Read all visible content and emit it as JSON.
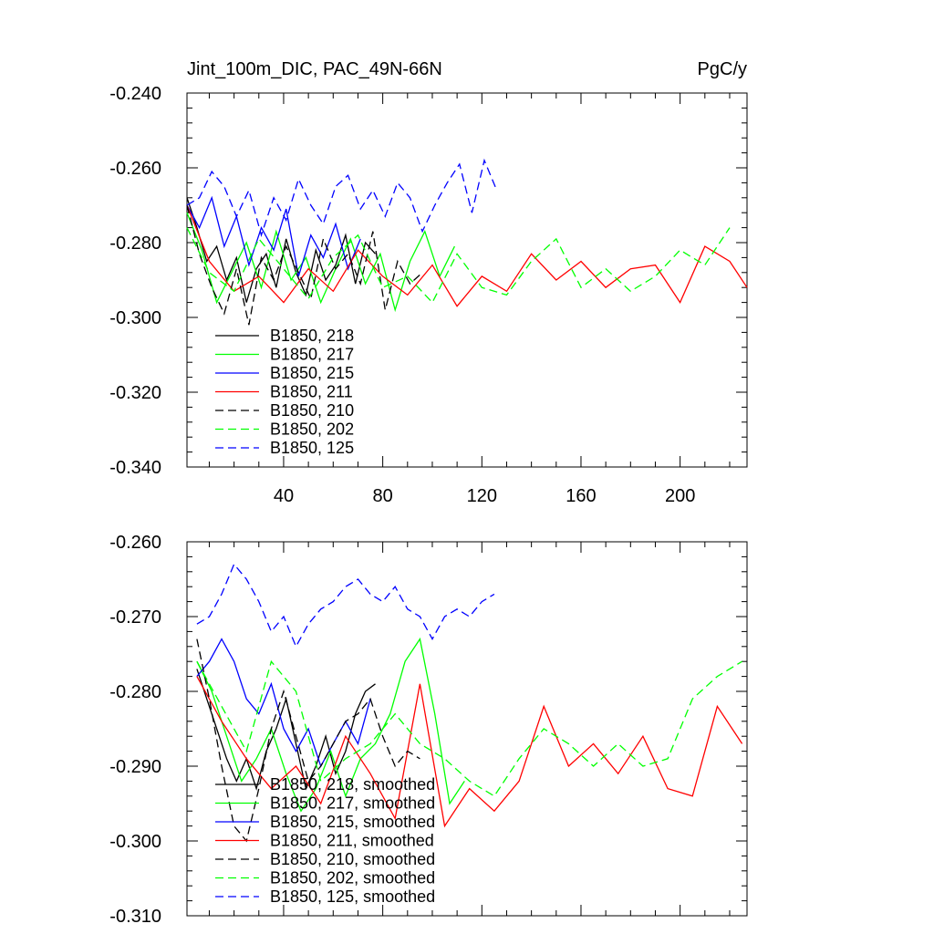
{
  "chart_data": [
    {
      "type": "line",
      "title": "Jint_100m_DIC, PAC_49N-66N",
      "units": "PgC/y",
      "xlim": [
        1,
        227
      ],
      "ylim": [
        -0.34,
        -0.24
      ],
      "x_ticks": [
        40,
        80,
        120,
        160,
        200
      ],
      "y_ticks": [
        -0.34,
        -0.32,
        -0.3,
        -0.28,
        -0.26,
        -0.24
      ],
      "x_tick_labels": [
        "40",
        "80",
        "120",
        "160",
        "200"
      ],
      "y_tick_labels": [
        "-0.340",
        "-0.320",
        "-0.300",
        "-0.280",
        "-0.260",
        "-0.240"
      ],
      "legend_position": "bottom-left",
      "series": [
        {
          "name": "B1850, 218",
          "color": "#000000",
          "dash": "solid",
          "x": [
            1,
            5,
            9,
            13,
            17,
            21,
            25,
            29,
            33,
            37,
            41,
            45,
            49,
            53,
            57,
            61,
            65,
            69,
            73,
            77
          ],
          "y": [
            -0.268,
            -0.276,
            -0.285,
            -0.281,
            -0.29,
            -0.284,
            -0.296,
            -0.287,
            -0.283,
            -0.292,
            -0.279,
            -0.288,
            -0.294,
            -0.282,
            -0.29,
            -0.286,
            -0.278,
            -0.291,
            -0.28,
            -0.283
          ]
        },
        {
          "name": "B1850, 217",
          "color": "#00ff00",
          "dash": "solid",
          "x": [
            1,
            7,
            13,
            19,
            25,
            31,
            37,
            43,
            49,
            55,
            61,
            67,
            73,
            79,
            85,
            91,
            97,
            103,
            109
          ],
          "y": [
            -0.272,
            -0.282,
            -0.296,
            -0.288,
            -0.28,
            -0.292,
            -0.277,
            -0.29,
            -0.284,
            -0.296,
            -0.287,
            -0.279,
            -0.291,
            -0.283,
            -0.298,
            -0.285,
            -0.277,
            -0.289,
            -0.281
          ]
        },
        {
          "name": "B1850, 215",
          "color": "#0000ff",
          "dash": "solid",
          "x": [
            1,
            6,
            11,
            16,
            21,
            26,
            31,
            36,
            41,
            46,
            51,
            56,
            61,
            66,
            71
          ],
          "y": [
            -0.27,
            -0.276,
            -0.268,
            -0.281,
            -0.273,
            -0.286,
            -0.276,
            -0.282,
            -0.271,
            -0.289,
            -0.278,
            -0.284,
            -0.275,
            -0.287,
            -0.279
          ]
        },
        {
          "name": "B1850, 211",
          "color": "#ff0000",
          "dash": "solid",
          "x": [
            1,
            10,
            20,
            30,
            40,
            50,
            60,
            70,
            80,
            90,
            100,
            110,
            120,
            130,
            140,
            150,
            160,
            170,
            180,
            190,
            200,
            210,
            220,
            227
          ],
          "y": [
            -0.27,
            -0.285,
            -0.293,
            -0.289,
            -0.296,
            -0.287,
            -0.293,
            -0.282,
            -0.289,
            -0.294,
            -0.286,
            -0.297,
            -0.289,
            -0.293,
            -0.283,
            -0.29,
            -0.285,
            -0.292,
            -0.287,
            -0.286,
            -0.296,
            -0.281,
            -0.285,
            -0.292
          ]
        },
        {
          "name": "B1850, 210",
          "color": "#000000",
          "dash": "dashed",
          "x": [
            1,
            6,
            11,
            16,
            21,
            26,
            31,
            36,
            41,
            46,
            51,
            56,
            61,
            66,
            71,
            76,
            81,
            86,
            91,
            96
          ],
          "y": [
            -0.27,
            -0.283,
            -0.292,
            -0.299,
            -0.287,
            -0.302,
            -0.284,
            -0.29,
            -0.281,
            -0.288,
            -0.295,
            -0.279,
            -0.287,
            -0.283,
            -0.291,
            -0.277,
            -0.298,
            -0.285,
            -0.291,
            -0.288
          ]
        },
        {
          "name": "B1850, 202",
          "color": "#00ff00",
          "dash": "dashed",
          "x": [
            1,
            10,
            20,
            30,
            40,
            50,
            60,
            70,
            80,
            90,
            100,
            110,
            120,
            130,
            140,
            150,
            160,
            170,
            180,
            190,
            200,
            210,
            220
          ],
          "y": [
            -0.276,
            -0.288,
            -0.293,
            -0.279,
            -0.287,
            -0.295,
            -0.284,
            -0.278,
            -0.292,
            -0.289,
            -0.296,
            -0.283,
            -0.292,
            -0.294,
            -0.285,
            -0.279,
            -0.292,
            -0.287,
            -0.293,
            -0.289,
            -0.282,
            -0.286,
            -0.276
          ]
        },
        {
          "name": "B1850, 125",
          "color": "#0000ff",
          "dash": "dashed",
          "x": [
            1,
            6,
            11,
            16,
            21,
            26,
            31,
            36,
            41,
            46,
            51,
            56,
            61,
            66,
            71,
            76,
            81,
            86,
            91,
            96,
            101,
            106,
            111,
            116,
            121,
            126
          ],
          "y": [
            -0.27,
            -0.268,
            -0.261,
            -0.265,
            -0.273,
            -0.266,
            -0.278,
            -0.268,
            -0.274,
            -0.263,
            -0.27,
            -0.275,
            -0.265,
            -0.262,
            -0.271,
            -0.266,
            -0.273,
            -0.264,
            -0.268,
            -0.277,
            -0.27,
            -0.264,
            -0.259,
            -0.272,
            -0.258,
            -0.266
          ]
        }
      ]
    },
    {
      "type": "line",
      "title": "",
      "xlim": [
        1,
        227
      ],
      "ylim": [
        -0.31,
        -0.26
      ],
      "x_ticks": [
        40,
        80,
        120,
        160,
        200
      ],
      "y_ticks": [
        -0.31,
        -0.3,
        -0.29,
        -0.28,
        -0.27,
        -0.26
      ],
      "y_tick_labels": [
        "-0.310",
        "-0.300",
        "-0.290",
        "-0.280",
        "-0.270",
        "-0.260"
      ],
      "legend_position": "bottom-left",
      "series": [
        {
          "name": "B1850, 218, smoothed",
          "color": "#000000",
          "dash": "solid",
          "x": [
            5,
            9,
            13,
            17,
            21,
            25,
            29,
            33,
            37,
            41,
            45,
            49,
            53,
            57,
            61,
            65,
            69,
            73,
            77
          ],
          "y": [
            -0.277,
            -0.281,
            -0.285,
            -0.289,
            -0.292,
            -0.289,
            -0.293,
            -0.288,
            -0.285,
            -0.281,
            -0.287,
            -0.293,
            -0.29,
            -0.286,
            -0.291,
            -0.288,
            -0.283,
            -0.28,
            -0.279
          ]
        },
        {
          "name": "B1850, 217, smoothed",
          "color": "#00ff00",
          "dash": "solid",
          "x": [
            5,
            11,
            17,
            23,
            29,
            35,
            41,
            47,
            53,
            59,
            65,
            71,
            77,
            83,
            89,
            95,
            101,
            107,
            113
          ],
          "y": [
            -0.276,
            -0.28,
            -0.286,
            -0.292,
            -0.289,
            -0.285,
            -0.291,
            -0.296,
            -0.293,
            -0.288,
            -0.294,
            -0.289,
            -0.287,
            -0.283,
            -0.276,
            -0.273,
            -0.283,
            -0.295,
            -0.292
          ]
        },
        {
          "name": "B1850, 215, smoothed",
          "color": "#0000ff",
          "dash": "solid",
          "x": [
            5,
            10,
            15,
            20,
            25,
            30,
            35,
            40,
            45,
            50,
            55,
            60,
            65,
            70,
            75
          ],
          "y": [
            -0.278,
            -0.276,
            -0.273,
            -0.276,
            -0.281,
            -0.283,
            -0.279,
            -0.285,
            -0.288,
            -0.285,
            -0.29,
            -0.287,
            -0.284,
            -0.287,
            -0.281
          ]
        },
        {
          "name": "B1850, 211, smoothed",
          "color": "#ff0000",
          "dash": "solid",
          "x": [
            5,
            15,
            25,
            35,
            45,
            55,
            65,
            75,
            85,
            95,
            105,
            115,
            125,
            135,
            145,
            155,
            165,
            175,
            185,
            195,
            205,
            215,
            225
          ],
          "y": [
            -0.278,
            -0.284,
            -0.289,
            -0.293,
            -0.29,
            -0.295,
            -0.286,
            -0.291,
            -0.297,
            -0.279,
            -0.298,
            -0.293,
            -0.296,
            -0.292,
            -0.282,
            -0.29,
            -0.287,
            -0.291,
            -0.286,
            -0.293,
            -0.294,
            -0.282,
            -0.287
          ]
        },
        {
          "name": "B1850, 210, smoothed",
          "color": "#000000",
          "dash": "dashed",
          "x": [
            5,
            10,
            15,
            20,
            25,
            30,
            35,
            40,
            45,
            50,
            55,
            60,
            65,
            70,
            75,
            80,
            85,
            90,
            95
          ],
          "y": [
            -0.273,
            -0.281,
            -0.29,
            -0.298,
            -0.3,
            -0.293,
            -0.285,
            -0.28,
            -0.286,
            -0.292,
            -0.29,
            -0.287,
            -0.284,
            -0.283,
            -0.281,
            -0.286,
            -0.29,
            -0.288,
            -0.289
          ]
        },
        {
          "name": "B1850, 202, smoothed",
          "color": "#00ff00",
          "dash": "dashed",
          "x": [
            5,
            15,
            25,
            35,
            45,
            55,
            65,
            75,
            85,
            95,
            105,
            115,
            125,
            135,
            145,
            155,
            165,
            175,
            185,
            195,
            205,
            215,
            225
          ],
          "y": [
            -0.276,
            -0.282,
            -0.288,
            -0.276,
            -0.28,
            -0.292,
            -0.289,
            -0.287,
            -0.283,
            -0.287,
            -0.289,
            -0.292,
            -0.294,
            -0.289,
            -0.285,
            -0.287,
            -0.29,
            -0.287,
            -0.29,
            -0.289,
            -0.281,
            -0.278,
            -0.276
          ]
        },
        {
          "name": "B1850, 125, smoothed",
          "color": "#0000ff",
          "dash": "dashed",
          "x": [
            5,
            10,
            15,
            20,
            25,
            30,
            35,
            40,
            45,
            50,
            55,
            60,
            65,
            70,
            75,
            80,
            85,
            90,
            95,
            100,
            105,
            110,
            115,
            120,
            125
          ],
          "y": [
            -0.271,
            -0.27,
            -0.267,
            -0.263,
            -0.265,
            -0.268,
            -0.272,
            -0.27,
            -0.274,
            -0.271,
            -0.269,
            -0.268,
            -0.266,
            -0.265,
            -0.267,
            -0.268,
            -0.266,
            -0.269,
            -0.27,
            -0.273,
            -0.27,
            -0.269,
            -0.27,
            -0.268,
            -0.267
          ]
        }
      ]
    }
  ]
}
